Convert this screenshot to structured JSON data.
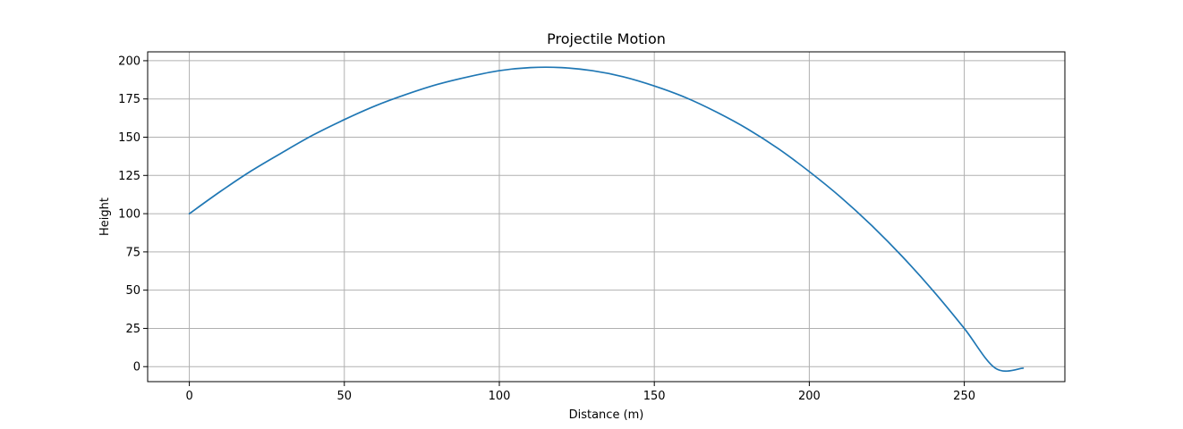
{
  "chart_data": {
    "type": "line",
    "title": "Projectile Motion",
    "xlabel": "Distance (m)",
    "ylabel": "Height",
    "xlim": [
      -13.45,
      282.45
    ],
    "ylim": [
      -9.8,
      205.8
    ],
    "xticks": [
      0,
      50,
      100,
      150,
      200,
      250
    ],
    "yticks": [
      0,
      25,
      50,
      75,
      100,
      125,
      150,
      175,
      200
    ],
    "grid": true,
    "series": [
      {
        "color": "#1f77b4",
        "x": [
          0,
          10,
          20,
          30,
          40,
          50,
          60,
          70,
          80,
          90,
          100,
          110,
          120,
          130,
          140,
          150,
          160,
          170,
          180,
          190,
          200,
          210,
          220,
          230,
          240,
          250,
          260,
          269
        ],
        "y": [
          100,
          114.5,
          128,
          140,
          151.5,
          161.5,
          170.5,
          178,
          184.5,
          189.5,
          193.5,
          195.5,
          195.5,
          193.5,
          189.5,
          183.5,
          176,
          166.5,
          155.5,
          142.5,
          127.5,
          111,
          92.5,
          72,
          49.5,
          25,
          -1,
          -1
        ]
      }
    ]
  }
}
